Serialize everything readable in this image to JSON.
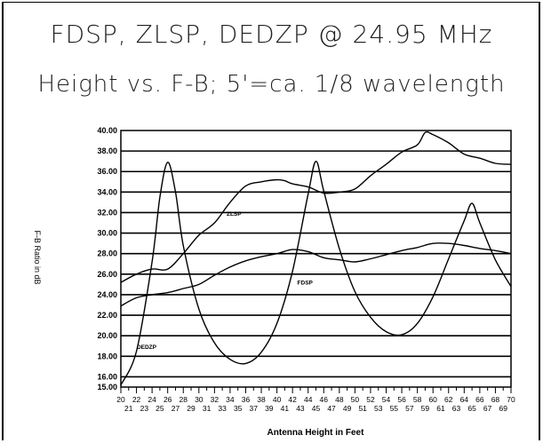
{
  "title": "FDSP, ZLSP, DEDZP @ 24.95 MHz",
  "subtitle": "Height vs. F-B;     5'=ca. 1/8 wavelength",
  "chart_data": {
    "type": "line",
    "title": "FDSP, ZLSP, DEDZP @ 24.95 MHz",
    "subtitle": "Height vs. F-B;     5'=ca. 1/8 wavelength",
    "xlabel": "Antenna Height in Feet",
    "ylabel": "F-B Ratio in dB",
    "ylim": [
      15,
      40
    ],
    "xlim": [
      20,
      70
    ],
    "grid": true,
    "y_ticks": [
      15,
      16,
      18,
      20,
      22,
      24,
      26,
      28,
      30,
      32,
      34,
      36,
      38,
      40
    ],
    "y_tick_labels": [
      "15.00",
      "16.00",
      "18.00",
      "20.00",
      "22.00",
      "24.00",
      "26.00",
      "28.00",
      "30.00",
      "32.00",
      "34.00",
      "36.00",
      "38.00",
      "40.00"
    ],
    "x_ticks_top": [
      "20",
      "22",
      "24",
      "26",
      "28",
      "30",
      "32",
      "34",
      "36",
      "38",
      "40",
      "42",
      "44",
      "46",
      "48",
      "50",
      "52",
      "54",
      "56",
      "58",
      "60",
      "62",
      "64",
      "66",
      "68",
      "70"
    ],
    "x_ticks_bottom": [
      "21",
      "23",
      "25",
      "27",
      "29",
      "31",
      "33",
      "35",
      "37",
      "39",
      "41",
      "43",
      "45",
      "47",
      "49",
      "51",
      "53",
      "55",
      "57",
      "59",
      "61",
      "63",
      "65",
      "67",
      "69"
    ],
    "series": [
      {
        "name": "ZLSP",
        "x": [
          20,
          22,
          24,
          26,
          28,
          30,
          32,
          34,
          36,
          38,
          40,
          41,
          42,
          44,
          46,
          48,
          50,
          52,
          54,
          56,
          58,
          59,
          60,
          62,
          64,
          66,
          68,
          70
        ],
        "y": [
          25.2,
          26.0,
          26.5,
          26.5,
          28.0,
          29.8,
          31.0,
          33.0,
          34.6,
          35.0,
          35.2,
          35.1,
          34.8,
          34.5,
          33.9,
          34.0,
          34.3,
          35.6,
          36.7,
          37.9,
          38.6,
          39.8,
          39.6,
          38.8,
          37.7,
          37.3,
          36.8,
          36.7
        ]
      },
      {
        "name": "FDSP",
        "x": [
          20,
          22,
          24,
          26,
          28,
          30,
          32,
          34,
          36,
          38,
          40,
          42,
          44,
          46,
          48,
          50,
          52,
          54,
          56,
          58,
          60,
          62,
          64,
          66,
          68,
          70
        ],
        "y": [
          22.9,
          23.7,
          24.0,
          24.2,
          24.6,
          25.0,
          25.9,
          26.7,
          27.3,
          27.7,
          28.0,
          28.4,
          28.2,
          27.6,
          27.4,
          27.2,
          27.5,
          27.9,
          28.3,
          28.6,
          29.0,
          29.0,
          28.8,
          28.5,
          28.3,
          28.0
        ]
      },
      {
        "name": "DEDZP",
        "x": [
          20,
          22,
          24,
          25,
          26,
          27,
          28,
          30,
          32,
          34,
          36,
          38,
          40,
          42,
          44,
          45,
          46,
          48,
          50,
          52,
          54,
          56,
          58,
          60,
          62,
          64,
          65,
          66,
          68,
          70
        ],
        "y": [
          15.2,
          18.5,
          27.2,
          33.5,
          36.9,
          34.0,
          28.8,
          22.6,
          19.3,
          17.7,
          17.3,
          18.4,
          21.2,
          26.3,
          33.8,
          37.0,
          34.1,
          28.5,
          24.3,
          21.8,
          20.4,
          20.1,
          21.2,
          23.8,
          27.5,
          31.2,
          32.9,
          31.0,
          27.4,
          24.8
        ]
      }
    ],
    "annotations": [
      {
        "text": "ZLSP",
        "x": 34.5,
        "y": 31.7
      },
      {
        "text": "FDSP",
        "x": 43.6,
        "y": 25.0
      },
      {
        "text": "DEDZP",
        "x": 23.3,
        "y": 18.7
      }
    ]
  }
}
